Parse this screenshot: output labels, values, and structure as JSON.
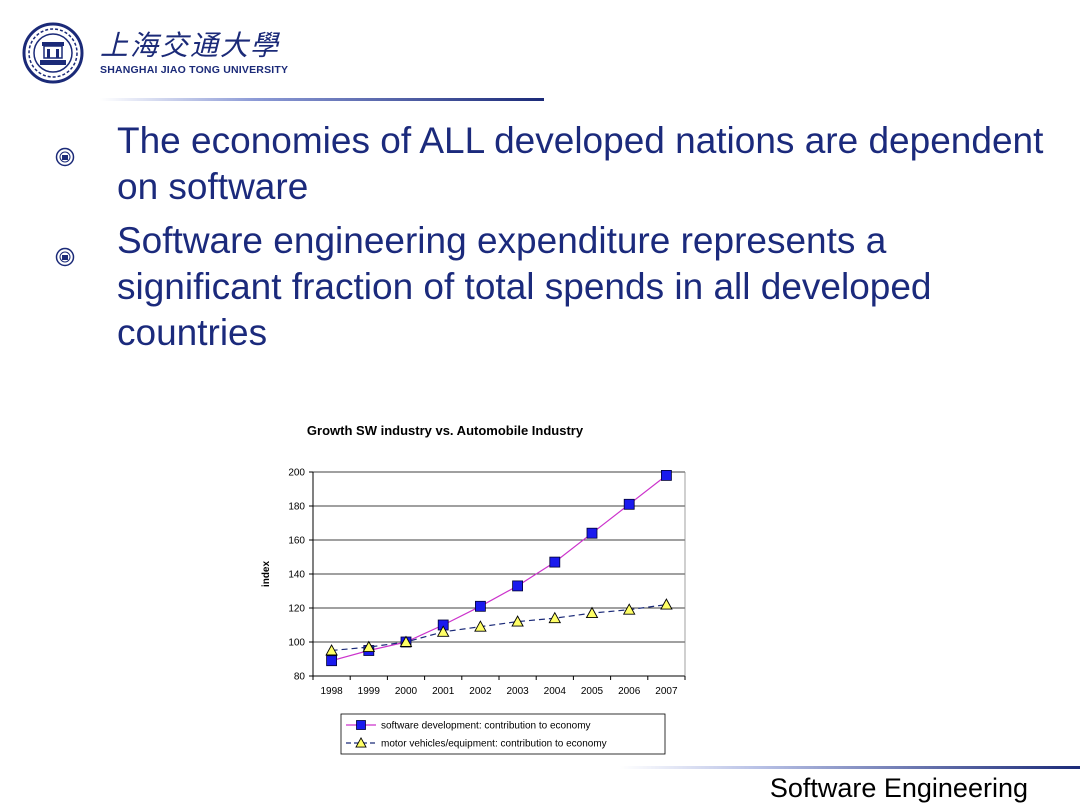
{
  "header": {
    "logo_cn": "上海交通大學",
    "logo_en": "SHANGHAI JIAO TONG UNIVERSITY"
  },
  "bullets": [
    {
      "text": "The economies of ALL developed nations are dependent on software"
    },
    {
      "text": "Software engineering expenditure represents a significant fraction of total spends in all developed countries"
    }
  ],
  "footer": {
    "text": "Software Engineering"
  },
  "chart_data": {
    "type": "line",
    "title": "Growth SW industry vs. Automobile Industry",
    "xlabel": "",
    "ylabel": "index",
    "x": [
      "1998",
      "1999",
      "2000",
      "2001",
      "2002",
      "2003",
      "2004",
      "2005",
      "2006",
      "2007"
    ],
    "ylim": [
      80,
      200
    ],
    "yticks": [
      80,
      100,
      120,
      140,
      160,
      180,
      200
    ],
    "grid": true,
    "legend_position": "bottom",
    "series": [
      {
        "name": "software development: contribution to economy",
        "values": [
          89,
          95,
          100,
          110,
          121,
          133,
          147,
          164,
          181,
          198
        ],
        "line_color": "#cc33cc",
        "marker_color": "#1a1aee",
        "marker": "square",
        "dash": "solid"
      },
      {
        "name": "motor vehicles/equipment: contribution to economy",
        "values": [
          95,
          97,
          100,
          106,
          109,
          112,
          114,
          117,
          119,
          122
        ],
        "line_color": "#1b2a78",
        "marker_color": "#ffff66",
        "marker": "triangle",
        "dash": "dashed"
      }
    ]
  }
}
